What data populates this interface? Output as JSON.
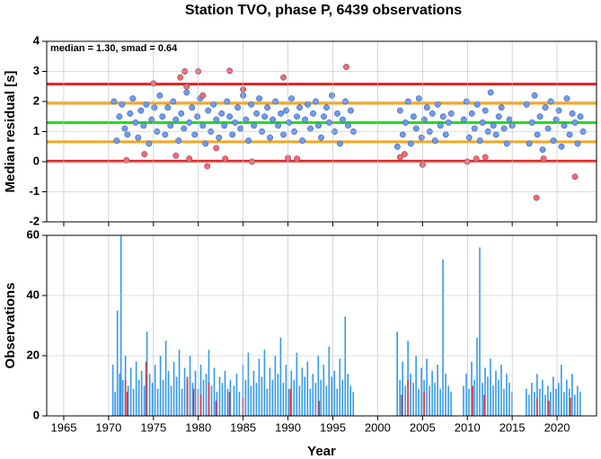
{
  "chart_data": [
    {
      "type": "scatter",
      "title": "Station TVO, phase P, 6439 observations",
      "annotation": "median = 1.30, smad = 0.64",
      "y_label": "Median residual [s]",
      "xlim": [
        1963.1,
        2024.4
      ],
      "ylim": [
        -2,
        4
      ],
      "xticks": [
        1965,
        1970,
        1975,
        1980,
        1985,
        1990,
        1995,
        2000,
        2005,
        2010,
        2015,
        2020
      ],
      "yticks": [
        -2,
        -1,
        0,
        1,
        2,
        3,
        4
      ],
      "grid": true,
      "hlines": [
        {
          "value": 2.58,
          "color": "#e02020"
        },
        {
          "value": 1.94,
          "color": "#f5a623"
        },
        {
          "value": 1.3,
          "color": "#22dd22"
        },
        {
          "value": 0.66,
          "color": "#f5a623"
        },
        {
          "value": 0.02,
          "color": "#e02020"
        }
      ],
      "series": [
        {
          "color": "#6b9bef",
          "x": [
            1970.6,
            1970.9,
            1971.2,
            1971.5,
            1971.8,
            1972.1,
            1972.4,
            1972.7,
            1973.0,
            1973.3,
            1973.6,
            1973.9,
            1974.2,
            1974.5,
            1974.8,
            1975.1,
            1975.4,
            1975.7,
            1976.0,
            1976.3,
            1976.6,
            1976.9,
            1977.2,
            1977.5,
            1977.8,
            1978.1,
            1978.4,
            1978.7,
            1979.0,
            1979.3,
            1979.6,
            1979.9,
            1980.2,
            1980.5,
            1980.8,
            1981.1,
            1981.4,
            1981.7,
            1982.0,
            1982.3,
            1982.6,
            1982.9,
            1983.2,
            1983.5,
            1983.8,
            1984.1,
            1984.4,
            1984.7,
            1985.0,
            1985.3,
            1985.6,
            1985.9,
            1986.2,
            1986.5,
            1986.8,
            1987.1,
            1987.4,
            1987.7,
            1988.0,
            1988.3,
            1988.6,
            1988.9,
            1989.2,
            1989.5,
            1989.8,
            1990.1,
            1990.4,
            1990.7,
            1991.0,
            1991.3,
            1991.6,
            1991.9,
            1992.2,
            1992.5,
            1992.8,
            1993.1,
            1993.4,
            1993.7,
            1994.0,
            1994.3,
            1994.6,
            1994.9,
            1995.2,
            1995.5,
            1995.8,
            1996.1,
            1996.4,
            1996.7,
            1997.0,
            1997.3,
            2002.2,
            2002.5,
            2002.8,
            2003.1,
            2003.4,
            2003.7,
            2004.0,
            2004.3,
            2004.6,
            2004.9,
            2005.2,
            2005.5,
            2005.8,
            2006.1,
            2006.4,
            2006.7,
            2007.0,
            2007.3,
            2007.6,
            2007.9,
            2008.2,
            2009.6,
            2009.9,
            2010.2,
            2010.5,
            2010.8,
            2011.1,
            2011.4,
            2011.7,
            2012.0,
            2012.3,
            2012.6,
            2012.9,
            2013.2,
            2013.5,
            2013.8,
            2014.1,
            2014.4,
            2014.7,
            2015.0,
            2016.6,
            2016.9,
            2017.2,
            2017.5,
            2017.8,
            2018.1,
            2018.4,
            2018.7,
            2019.0,
            2019.3,
            2019.6,
            2019.9,
            2020.2,
            2020.5,
            2020.8,
            2021.1,
            2021.4,
            2021.7,
            2022.0,
            2022.3,
            2022.6,
            2022.9
          ],
          "values": [
            2.0,
            0.7,
            1.5,
            1.9,
            1.1,
            0.9,
            1.6,
            2.1,
            1.3,
            0.8,
            1.7,
            1.2,
            1.9,
            0.6,
            1.4,
            1.8,
            1.0,
            2.2,
            1.5,
            0.9,
            1.8,
            1.2,
            2.0,
            1.4,
            0.7,
            1.6,
            1.1,
            2.3,
            1.3,
            1.8,
            0.9,
            1.5,
            2.1,
            1.2,
            0.6,
            1.7,
            1.0,
            1.9,
            1.4,
            0.8,
            1.6,
            1.2,
            2.0,
            1.5,
            0.9,
            1.3,
            1.8,
            1.1,
            2.2,
            1.4,
            0.7,
            1.9,
            1.2,
            1.6,
            2.1,
            1.0,
            1.5,
            1.8,
            0.8,
            1.4,
            2.0,
            1.2,
            1.6,
            0.9,
            1.7,
            1.3,
            2.1,
            1.0,
            1.5,
            1.8,
            0.7,
            1.4,
            1.9,
            1.1,
            1.6,
            2.0,
            1.2,
            0.8,
            1.5,
            1.8,
            1.3,
            2.2,
            1.0,
            1.6,
            0.6,
            1.4,
            2.0,
            1.2,
            1.7,
            1.0,
            0.5,
            1.7,
            0.9,
            1.3,
            2.0,
            0.6,
            1.5,
            1.1,
            2.1,
            0.8,
            1.4,
            1.8,
            1.0,
            1.6,
            0.7,
            1.9,
            1.2,
            1.5,
            0.9,
            1.3,
            1.6,
            1.4,
            2.0,
            0.8,
            1.6,
            1.1,
            1.9,
            0.7,
            1.3,
            1.7,
            1.0,
            2.3,
            1.2,
            0.9,
            1.5,
            1.8,
            1.1,
            0.6,
            1.4,
            1.2,
            1.9,
            0.6,
            1.3,
            2.2,
            0.9,
            1.5,
            0.4,
            1.8,
            1.1,
            2.0,
            0.7,
            1.4,
            1.7,
            0.5,
            1.2,
            2.1,
            0.9,
            1.6,
            1.3,
            0.6,
            1.5,
            1.0
          ]
        },
        {
          "color": "#ff6666",
          "x": [
            1972.0,
            1974.0,
            1975.0,
            1977.5,
            1978.0,
            1978.5,
            1978.7,
            1979.0,
            1980.0,
            1980.5,
            1981.0,
            1982.0,
            1983.0,
            1983.5,
            1985.0,
            1986.0,
            1989.5,
            1990.0,
            1991.0,
            1996.5,
            2002.5,
            2003.0,
            2005.0,
            2010.0,
            2011.0,
            2012.0,
            2017.7,
            2018.5,
            2022.0
          ],
          "values": [
            0.05,
            0.25,
            2.6,
            0.2,
            2.8,
            3.0,
            2.5,
            0.1,
            3.0,
            2.2,
            -0.15,
            0.45,
            0.1,
            3.02,
            2.4,
            0.0,
            2.8,
            0.12,
            0.1,
            3.15,
            0.15,
            0.25,
            -0.1,
            0.0,
            0.1,
            0.15,
            -1.2,
            0.1,
            -0.5
          ]
        }
      ]
    },
    {
      "type": "bar",
      "y_label": "Observations",
      "x_label": "Year",
      "xlim": [
        1963.1,
        2024.4
      ],
      "ylim": [
        0,
        60
      ],
      "xticks": [
        1965,
        1970,
        1975,
        1980,
        1985,
        1990,
        1995,
        2000,
        2005,
        2010,
        2015,
        2020
      ],
      "yticks": [
        0,
        20,
        40,
        60
      ],
      "grid": true,
      "series": [
        {
          "color": "#3399ee",
          "x": [
            1970.5,
            1970.75,
            1971,
            1971.25,
            1971.4,
            1971.6,
            1971.9,
            1972.2,
            1972.5,
            1972.8,
            1973.1,
            1973.4,
            1973.7,
            1974,
            1974.3,
            1974.6,
            1974.9,
            1975.2,
            1975.5,
            1975.8,
            1976.1,
            1976.4,
            1976.7,
            1977,
            1977.3,
            1977.6,
            1977.9,
            1978.2,
            1978.5,
            1978.8,
            1979.1,
            1979.4,
            1979.7,
            1980,
            1980.3,
            1980.6,
            1980.9,
            1981.2,
            1981.5,
            1981.8,
            1982.1,
            1982.4,
            1982.7,
            1983,
            1983.3,
            1983.6,
            1984,
            1984.3,
            1984.6,
            1985,
            1985.3,
            1985.6,
            1985.9,
            1986.2,
            1986.5,
            1986.8,
            1987.1,
            1987.4,
            1987.7,
            1988,
            1988.3,
            1988.6,
            1988.9,
            1989.2,
            1989.5,
            1989.8,
            1990.1,
            1990.4,
            1990.7,
            1991,
            1991.3,
            1991.6,
            1991.9,
            1992.2,
            1992.5,
            1992.8,
            1993.1,
            1993.4,
            1993.7,
            1994,
            1994.3,
            1994.6,
            1994.9,
            1995.2,
            1995.5,
            1995.8,
            1996.1,
            1996.4,
            1996.7,
            1997,
            1997.3,
            2002.2,
            2002.5,
            2002.8,
            2003.1,
            2003.4,
            2003.7,
            2004.0,
            2004.3,
            2004.6,
            2004.9,
            2005.2,
            2005.5,
            2005.8,
            2006.1,
            2006.4,
            2006.7,
            2007.0,
            2007.3,
            2007.6,
            2007.9,
            2008.2,
            2009.6,
            2009.9,
            2010.2,
            2010.5,
            2010.8,
            2011.1,
            2011.4,
            2011.7,
            2012.0,
            2012.3,
            2012.6,
            2012.9,
            2013.2,
            2013.5,
            2013.8,
            2014.1,
            2014.4,
            2014.7,
            2015.0,
            2016.6,
            2016.9,
            2017.2,
            2017.5,
            2017.8,
            2018.1,
            2018.4,
            2018.7,
            2019.0,
            2019.3,
            2019.6,
            2019.9,
            2020.2,
            2020.5,
            2020.8,
            2021.1,
            2021.4,
            2021.7,
            2022.0,
            2022.3,
            2022.6
          ],
          "values": [
            17,
            8,
            35,
            14,
            60,
            12,
            20,
            10,
            16,
            9,
            18,
            12,
            15,
            10,
            28,
            14,
            11,
            17,
            9,
            20,
            12,
            25,
            15,
            10,
            18,
            13,
            22,
            9,
            16,
            12,
            20,
            11,
            15,
            9,
            17,
            12,
            14,
            22,
            10,
            16,
            8,
            13,
            11,
            15,
            9,
            12,
            10,
            14,
            8,
            17,
            12,
            21,
            10,
            15,
            11,
            19,
            13,
            22,
            9,
            16,
            12,
            20,
            14,
            26,
            11,
            17,
            9,
            15,
            12,
            21,
            10,
            16,
            13,
            18,
            9,
            14,
            11,
            20,
            12,
            17,
            10,
            23,
            13,
            15,
            9,
            19,
            12,
            33,
            14,
            10,
            8,
            28,
            12,
            18,
            10,
            25,
            14,
            11,
            20,
            9,
            16,
            12,
            19,
            10,
            15,
            11,
            17,
            9,
            52,
            14,
            10,
            8,
            10,
            14,
            9,
            18,
            12,
            26,
            56,
            11,
            16,
            13,
            19,
            10,
            15,
            12,
            17,
            9,
            14,
            11,
            8,
            9,
            7,
            11,
            8,
            14,
            9,
            12,
            7,
            10,
            8,
            13,
            9,
            11,
            17,
            8,
            12,
            9,
            14,
            7,
            10,
            8
          ]
        },
        {
          "color": "#e03030",
          "x": [
            1971.9,
            1972.1,
            1974.2,
            1978.8,
            1979.5,
            1980.3,
            1981.2,
            1982,
            1983.5,
            1985,
            1990.3,
            1993.5,
            2002.7,
            2003.4,
            2005.2,
            2010.6,
            2011.9,
            2017.8,
            2019.1,
            2021.5
          ],
          "values": [
            12,
            8,
            18,
            13,
            9,
            7,
            11,
            5,
            8,
            6,
            9,
            5,
            7,
            12,
            8,
            10,
            7,
            6,
            5,
            6
          ]
        }
      ]
    }
  ]
}
